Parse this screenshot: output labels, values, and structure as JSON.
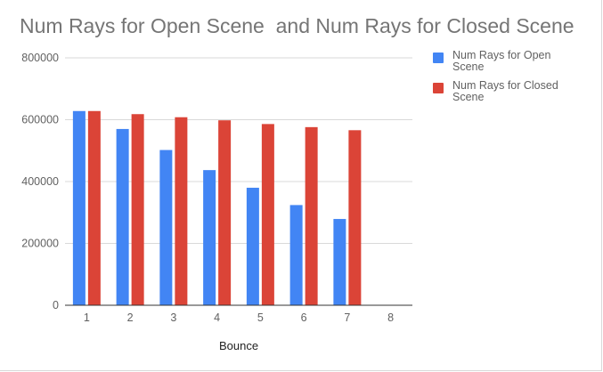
{
  "chart_data": {
    "type": "bar",
    "title": "Num Rays for Open Scene  and Num Rays for Closed Scene",
    "xlabel": "Bounce",
    "ylabel": "",
    "categories": [
      "1",
      "2",
      "3",
      "4",
      "5",
      "6",
      "7",
      "8"
    ],
    "ylim": [
      0,
      800000
    ],
    "yticks": [
      0,
      200000,
      400000,
      600000,
      800000
    ],
    "ytick_labels": [
      "0",
      "200000",
      "400000",
      "600000",
      "800000"
    ],
    "grid": true,
    "legend_position": "right",
    "series": [
      {
        "name": "Num Rays for Open Scene",
        "color": "#4285f4",
        "values": [
          628000,
          570000,
          502000,
          437000,
          380000,
          324000,
          279000,
          null
        ]
      },
      {
        "name": "Num Rays for Closed Scene",
        "color": "#db4437",
        "values": [
          628000,
          618000,
          608000,
          598000,
          586000,
          576000,
          566000,
          null
        ]
      }
    ]
  }
}
